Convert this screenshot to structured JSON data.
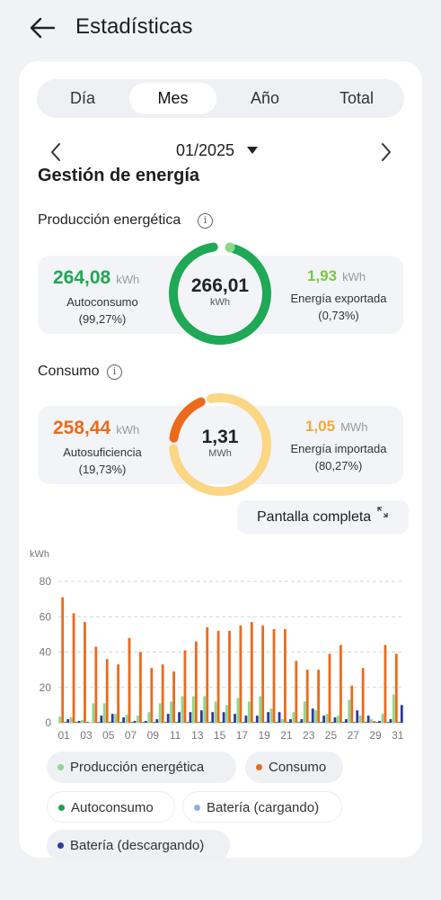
{
  "header": {
    "title": "Estadísticas",
    "back_icon": "arrow-left-icon"
  },
  "tabs": [
    {
      "label": "Día",
      "active": false
    },
    {
      "label": "Mes",
      "active": true
    },
    {
      "label": "Año",
      "active": false
    },
    {
      "label": "Total",
      "active": false
    }
  ],
  "period": {
    "label": "01/2025"
  },
  "section_title": "Gestión de energía",
  "production": {
    "title": "Producción energética",
    "total_value": "266,01",
    "total_unit": "kWh",
    "left": {
      "value": "264,08",
      "unit": "kWh",
      "label": "Autoconsumo",
      "percent": "(99,27%)"
    },
    "right": {
      "value": "1,93",
      "unit": "kWh",
      "label": "Energía exportada",
      "percent": "(0,73%)"
    },
    "ring_fraction": 0.9927
  },
  "consumption": {
    "title": "Consumo",
    "total_value": "1,31",
    "total_unit": "MWh",
    "left": {
      "value": "258,44",
      "unit": "kWh",
      "label": "Autosuficiencia",
      "percent": "(19,73%)"
    },
    "right": {
      "value": "1,05",
      "unit": "MWh",
      "label": "Energía importada",
      "percent": "(80,27%)"
    },
    "ring_fraction": 0.1973
  },
  "fullscreen_label": "Pantalla completa",
  "colors": {
    "green": "#1fa855",
    "light_green": "#8ed88a",
    "orange": "#ec6a1c",
    "amber": "#f2a93b",
    "light_yellow": "#fad685",
    "dark_green": "#20a24e",
    "blue_light": "#8fb1de",
    "navy": "#2d3a9e"
  },
  "chart_data": {
    "type": "bar",
    "ylabel": "kWh",
    "ylim": [
      0,
      80
    ],
    "yticks": [
      "0",
      "20",
      "40",
      "60",
      "80"
    ],
    "x_tick_labels": [
      "01",
      "03",
      "05",
      "07",
      "09",
      "11",
      "13",
      "15",
      "17",
      "19",
      "21",
      "23",
      "25",
      "27",
      "29",
      "31"
    ],
    "categories": [
      "01",
      "02",
      "03",
      "04",
      "05",
      "06",
      "07",
      "08",
      "09",
      "10",
      "11",
      "12",
      "13",
      "14",
      "15",
      "16",
      "17",
      "18",
      "19",
      "20",
      "21",
      "22",
      "23",
      "24",
      "25",
      "26",
      "27",
      "28",
      "29",
      "30",
      "31"
    ],
    "series": [
      {
        "name": "Producción energética",
        "color": "#8ed88a",
        "values": [
          3.5,
          3.2,
          1.5,
          11,
          11,
          5,
          4.5,
          4,
          6,
          11,
          12,
          15,
          15,
          15,
          12,
          10,
          14,
          12,
          15,
          8,
          2,
          6,
          12,
          7,
          5,
          4,
          13,
          4,
          2,
          5,
          16
        ]
      },
      {
        "name": "Consumo",
        "color": "#ec6a1c",
        "values": [
          71,
          62,
          57,
          43,
          36,
          33,
          48,
          40,
          31,
          33,
          29,
          41,
          46,
          54,
          52,
          52,
          55,
          57,
          55,
          53,
          53,
          35,
          30,
          30,
          39,
          44,
          21,
          31,
          1,
          44,
          39
        ]
      },
      {
        "name": "Autoconsumo",
        "color": "#20a24e",
        "values": [
          0.5,
          0.5,
          0.5,
          0.5,
          0.5,
          0.5,
          0.5,
          0.5,
          0.5,
          0.5,
          0.5,
          0.5,
          0.5,
          0.5,
          0.5,
          0.5,
          0.5,
          0.5,
          0.5,
          0.5,
          0.5,
          0.5,
          0.5,
          0.5,
          0.5,
          0.5,
          0.5,
          0.5,
          0.5,
          0.5,
          0.5
        ]
      },
      {
        "name": "Batería (cargando)",
        "color": "#8fb1de",
        "values": [
          0,
          0,
          0,
          0,
          0,
          0,
          0,
          0,
          0,
          0,
          0,
          0,
          0,
          0,
          0,
          0,
          0,
          0,
          0,
          0,
          0,
          0,
          0,
          0,
          0,
          0,
          0,
          0,
          0,
          0,
          0
        ]
      },
      {
        "name": "Batería (descargando)",
        "color": "#2d3a9e",
        "values": [
          2,
          1,
          0,
          4,
          5,
          3,
          1,
          1,
          2,
          5,
          6,
          6,
          7,
          6,
          6,
          5,
          4,
          4,
          6,
          6,
          2,
          2,
          8,
          4,
          3,
          2,
          7,
          4,
          1,
          2,
          10
        ]
      }
    ]
  },
  "legend": [
    {
      "label": "Producción energética",
      "color": "#8ed88a"
    },
    {
      "label": "Consumo",
      "color": "#ec6a1c"
    },
    {
      "label": "Autoconsumo",
      "color": "#20a24e"
    },
    {
      "label": "Batería (cargando)",
      "color": "#8fb1de"
    },
    {
      "label": "Batería (descargando)",
      "color": "#2d3a9e"
    }
  ]
}
